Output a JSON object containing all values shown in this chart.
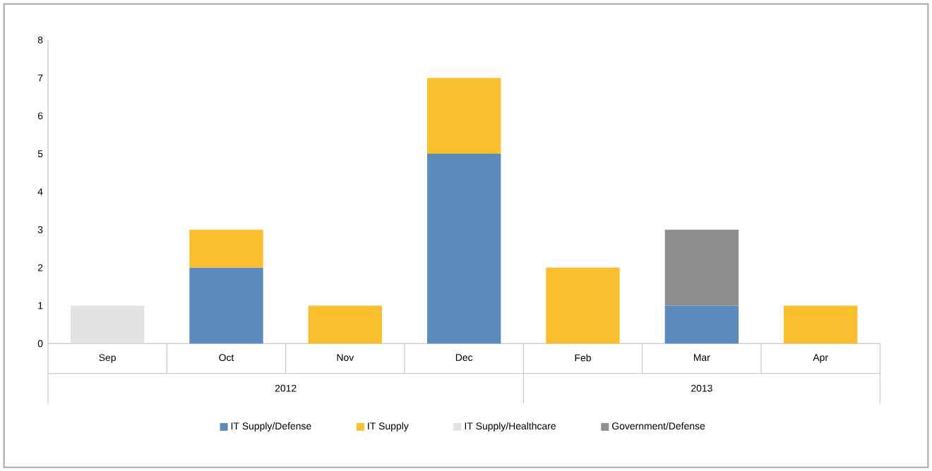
{
  "chart_data": {
    "type": "bar",
    "stacked": true,
    "categories": [
      "Sep",
      "Oct",
      "Nov",
      "Dec",
      "Feb",
      "Mar",
      "Apr"
    ],
    "series": [
      {
        "name": "IT Supply/Defense",
        "color": "#5b8bbd",
        "values": [
          null,
          2,
          null,
          5,
          null,
          1,
          null
        ]
      },
      {
        "name": "IT Supply",
        "color": "#f9bf2f",
        "values": [
          null,
          1,
          1,
          2,
          2,
          null,
          1
        ]
      },
      {
        "name": "IT Supply/Healthcare",
        "color": "#e2e2e2",
        "values": [
          1,
          null,
          null,
          null,
          null,
          null,
          null
        ]
      },
      {
        "name": "Government/Defense",
        "color": "#8e8e8e",
        "values": [
          null,
          null,
          null,
          null,
          null,
          2,
          null
        ]
      }
    ],
    "ylim": [
      0,
      8
    ],
    "yticks": [
      0,
      1,
      2,
      3,
      4,
      5,
      6,
      7,
      8
    ],
    "grid": false,
    "legend": "bottom",
    "annotations": [
      "2012",
      "2013"
    ]
  }
}
